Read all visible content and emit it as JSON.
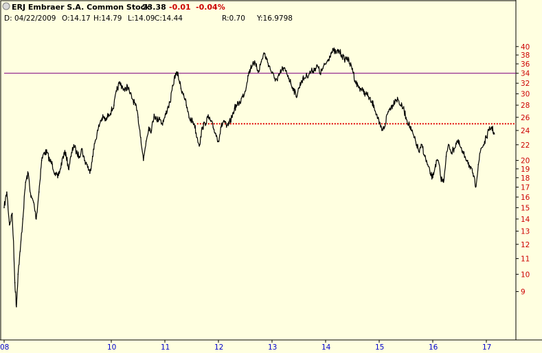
{
  "header": {
    "title": "ERJ Embraer S.A. Common Stock",
    "last": "23.38",
    "change": "-0.01",
    "change_pct": "-0.04%",
    "date_label": "D: 04/22/2009",
    "open_label": "O:14.17",
    "high_label": "H:14.79",
    "low_label": "L:14.09",
    "close_label": "C:14.44",
    "r_label": "R:0.70",
    "y_label": "Y:16.9798"
  },
  "colors": {
    "background": "#ffffe0",
    "axis_panel": "#ffffe0",
    "price_line": "#000000",
    "resistance_line": "#800080",
    "support_line": "#e00000",
    "y_tick_text": "#cc0000",
    "x_tick_text": "#0000cc",
    "change_text": "#cc0000"
  },
  "chart_data": {
    "type": "line",
    "y_scale": "log",
    "ylim": [
      7.6,
      45.5
    ],
    "xlim": [
      8.0,
      17.25
    ],
    "y_ticks": [
      9,
      10,
      11,
      12,
      13,
      14,
      15,
      16,
      17,
      18,
      19,
      20,
      22,
      24,
      26,
      28,
      30,
      32,
      34,
      36,
      38,
      40
    ],
    "x_ticks": [
      "08",
      "10",
      "11",
      "12",
      "13",
      "14",
      "15",
      "16",
      "17"
    ],
    "x_tick_positions": [
      8,
      10,
      11,
      12,
      13,
      14,
      15,
      16,
      17
    ],
    "grid": false,
    "horizontal_lines": [
      {
        "value": 34.0,
        "style": "solid",
        "color": "#800080",
        "from": 8.0,
        "to": 17.25
      },
      {
        "value": 25.0,
        "style": "dotted",
        "color": "#e00000",
        "from": 11.6,
        "to": 17.25
      }
    ],
    "series": [
      {
        "points": [
          [
            8.0,
            15.0
          ],
          [
            8.05,
            16.5
          ],
          [
            8.1,
            13.5
          ],
          [
            8.15,
            14.5
          ],
          [
            8.2,
            9.5
          ],
          [
            8.23,
            8.2
          ],
          [
            8.26,
            10.0
          ],
          [
            8.3,
            11.5
          ],
          [
            8.35,
            14.0
          ],
          [
            8.4,
            17.5
          ],
          [
            8.45,
            18.5
          ],
          [
            8.5,
            16.0
          ],
          [
            8.55,
            15.5
          ],
          [
            8.6,
            14.0
          ],
          [
            8.65,
            16.5
          ],
          [
            8.7,
            20.0
          ],
          [
            8.75,
            21.0
          ],
          [
            8.8,
            21.0
          ],
          [
            8.85,
            20.0
          ],
          [
            8.9,
            19.5
          ],
          [
            8.95,
            18.5
          ],
          [
            9.0,
            18.0
          ],
          [
            9.05,
            19.0
          ],
          [
            9.1,
            20.5
          ],
          [
            9.15,
            21.0
          ],
          [
            9.2,
            19.0
          ],
          [
            9.25,
            20.5
          ],
          [
            9.3,
            22.0
          ],
          [
            9.35,
            21.0
          ],
          [
            9.4,
            20.5
          ],
          [
            9.45,
            21.5
          ],
          [
            9.5,
            20.0
          ],
          [
            9.55,
            19.5
          ],
          [
            9.6,
            18.5
          ],
          [
            9.65,
            20.5
          ],
          [
            9.7,
            22.5
          ],
          [
            9.75,
            24.0
          ],
          [
            9.8,
            25.5
          ],
          [
            9.85,
            26.0
          ],
          [
            9.9,
            25.5
          ],
          [
            9.95,
            26.5
          ],
          [
            10.0,
            27.0
          ],
          [
            10.05,
            28.0
          ],
          [
            10.1,
            30.5
          ],
          [
            10.15,
            32.0
          ],
          [
            10.2,
            31.5
          ],
          [
            10.25,
            30.5
          ],
          [
            10.3,
            31.5
          ],
          [
            10.35,
            30.0
          ],
          [
            10.4,
            29.0
          ],
          [
            10.45,
            28.0
          ],
          [
            10.5,
            26.0
          ],
          [
            10.55,
            23.0
          ],
          [
            10.6,
            20.0
          ],
          [
            10.65,
            22.5
          ],
          [
            10.7,
            24.5
          ],
          [
            10.75,
            24.0
          ],
          [
            10.8,
            26.5
          ],
          [
            10.85,
            25.5
          ],
          [
            10.9,
            26.0
          ],
          [
            10.95,
            25.0
          ],
          [
            11.0,
            26.0
          ],
          [
            11.05,
            27.5
          ],
          [
            11.1,
            28.5
          ],
          [
            11.15,
            31.5
          ],
          [
            11.2,
            34.0
          ],
          [
            11.25,
            33.5
          ],
          [
            11.3,
            31.0
          ],
          [
            11.35,
            30.0
          ],
          [
            11.4,
            28.0
          ],
          [
            11.45,
            26.0
          ],
          [
            11.5,
            25.5
          ],
          [
            11.55,
            25.0
          ],
          [
            11.6,
            23.0
          ],
          [
            11.65,
            22.0
          ],
          [
            11.7,
            24.5
          ],
          [
            11.75,
            25.0
          ],
          [
            11.8,
            26.0
          ],
          [
            11.85,
            25.5
          ],
          [
            11.9,
            24.5
          ],
          [
            11.95,
            23.5
          ],
          [
            12.0,
            22.5
          ],
          [
            12.05,
            24.5
          ],
          [
            12.1,
            25.5
          ],
          [
            12.15,
            24.5
          ],
          [
            12.2,
            25.0
          ],
          [
            12.25,
            26.0
          ],
          [
            12.3,
            27.5
          ],
          [
            12.35,
            28.0
          ],
          [
            12.4,
            28.5
          ],
          [
            12.45,
            29.5
          ],
          [
            12.5,
            30.5
          ],
          [
            12.55,
            33.5
          ],
          [
            12.6,
            35.0
          ],
          [
            12.65,
            36.5
          ],
          [
            12.7,
            35.5
          ],
          [
            12.75,
            34.5
          ],
          [
            12.8,
            36.5
          ],
          [
            12.85,
            38.5
          ],
          [
            12.9,
            37.0
          ],
          [
            12.95,
            35.5
          ],
          [
            13.0,
            34.0
          ],
          [
            13.05,
            33.0
          ],
          [
            13.1,
            32.5
          ],
          [
            13.15,
            34.0
          ],
          [
            13.2,
            35.0
          ],
          [
            13.25,
            34.5
          ],
          [
            13.3,
            33.5
          ],
          [
            13.35,
            32.0
          ],
          [
            13.4,
            31.0
          ],
          [
            13.45,
            29.5
          ],
          [
            13.5,
            31.0
          ],
          [
            13.55,
            32.5
          ],
          [
            13.6,
            33.0
          ],
          [
            13.65,
            33.5
          ],
          [
            13.7,
            34.0
          ],
          [
            13.75,
            34.5
          ],
          [
            13.8,
            35.0
          ],
          [
            13.85,
            35.5
          ],
          [
            13.9,
            34.0
          ],
          [
            13.95,
            35.0
          ],
          [
            14.0,
            36.0
          ],
          [
            14.05,
            37.0
          ],
          [
            14.1,
            38.5
          ],
          [
            14.15,
            39.0
          ],
          [
            14.2,
            38.5
          ],
          [
            14.25,
            39.0
          ],
          [
            14.3,
            38.0
          ],
          [
            14.35,
            37.0
          ],
          [
            14.4,
            37.5
          ],
          [
            14.45,
            36.0
          ],
          [
            14.5,
            35.0
          ],
          [
            14.55,
            32.5
          ],
          [
            14.6,
            31.5
          ],
          [
            14.65,
            31.0
          ],
          [
            14.7,
            30.5
          ],
          [
            14.75,
            30.0
          ],
          [
            14.8,
            29.5
          ],
          [
            14.85,
            28.5
          ],
          [
            14.9,
            28.0
          ],
          [
            14.95,
            26.5
          ],
          [
            15.0,
            25.0
          ],
          [
            15.05,
            24.0
          ],
          [
            15.1,
            24.5
          ],
          [
            15.15,
            26.5
          ],
          [
            15.2,
            27.5
          ],
          [
            15.25,
            28.0
          ],
          [
            15.3,
            29.0
          ],
          [
            15.35,
            29.0
          ],
          [
            15.4,
            28.0
          ],
          [
            15.45,
            27.5
          ],
          [
            15.5,
            26.0
          ],
          [
            15.55,
            25.0
          ],
          [
            15.6,
            24.0
          ],
          [
            15.65,
            23.0
          ],
          [
            15.7,
            22.0
          ],
          [
            15.75,
            21.0
          ],
          [
            15.8,
            22.0
          ],
          [
            15.85,
            20.5
          ],
          [
            15.9,
            19.5
          ],
          [
            15.95,
            18.5
          ],
          [
            16.0,
            18.0
          ],
          [
            16.05,
            19.5
          ],
          [
            16.1,
            20.0
          ],
          [
            16.15,
            18.0
          ],
          [
            16.2,
            17.5
          ],
          [
            16.25,
            20.5
          ],
          [
            16.3,
            22.0
          ],
          [
            16.35,
            21.0
          ],
          [
            16.4,
            21.5
          ],
          [
            16.45,
            22.5
          ],
          [
            16.5,
            22.0
          ],
          [
            16.55,
            21.0
          ],
          [
            16.6,
            20.5
          ],
          [
            16.65,
            20.0
          ],
          [
            16.7,
            19.0
          ],
          [
            16.75,
            18.5
          ],
          [
            16.8,
            17.0
          ],
          [
            16.85,
            19.5
          ],
          [
            16.9,
            21.5
          ],
          [
            16.95,
            22.0
          ],
          [
            17.0,
            23.0
          ],
          [
            17.05,
            24.0
          ],
          [
            17.1,
            24.5
          ],
          [
            17.15,
            23.5
          ]
        ]
      }
    ]
  }
}
